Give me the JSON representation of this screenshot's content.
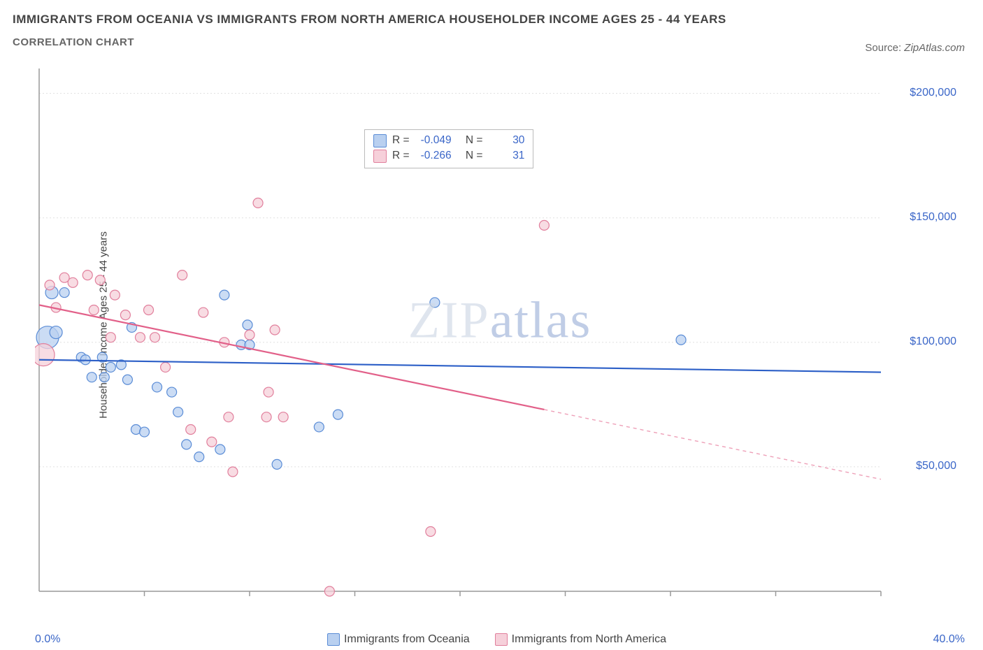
{
  "title_line1": "IMMIGRANTS FROM OCEANIA VS IMMIGRANTS FROM NORTH AMERICA HOUSEHOLDER INCOME AGES 25 - 44 YEARS",
  "title_line2": "CORRELATION CHART",
  "source_prefix": "Source: ",
  "source_name": "ZipAtlas.com",
  "ylabel": "Householder Income Ages 25 - 44 years",
  "watermark_a": "ZIP",
  "watermark_b": "atlas",
  "chart": {
    "type": "scatter",
    "xlim": [
      0,
      40.0
    ],
    "ylim": [
      0,
      210000
    ],
    "x0_label": "0.0%",
    "xmax_label": "40.0%",
    "y_ticks": [
      50000,
      100000,
      150000,
      200000
    ],
    "y_tick_labels": [
      "$50,000",
      "$100,000",
      "$150,000",
      "$200,000"
    ],
    "background_color": "#ffffff",
    "grid_color": "#e0e0e0",
    "axis_color": "#999999",
    "x_tick_positions": [
      5,
      10,
      15,
      20,
      25,
      30,
      35,
      40
    ]
  },
  "legend_top": {
    "s1_text_R": "R =",
    "s1_val_R": "-0.049",
    "s1_text_N": "N =",
    "s1_val_N": "30",
    "s2_val_R": "-0.266",
    "s2_val_N": "31"
  },
  "series": [
    {
      "name": "Immigrants from Oceania",
      "fill": "#b9d0f0",
      "stroke": "#5a8cd6",
      "trend_color": "#2c5fc7",
      "trend": {
        "x1": 0,
        "y1": 93000,
        "x2": 40,
        "y2": 88000,
        "solid_to_x": 40
      },
      "points": [
        {
          "x": 0.4,
          "y": 102000,
          "r": 16
        },
        {
          "x": 0.6,
          "y": 120000,
          "r": 9
        },
        {
          "x": 0.8,
          "y": 104000,
          "r": 9
        },
        {
          "x": 1.2,
          "y": 120000,
          "r": 7
        },
        {
          "x": 2.0,
          "y": 94000,
          "r": 7
        },
        {
          "x": 2.2,
          "y": 93000,
          "r": 7
        },
        {
          "x": 2.5,
          "y": 86000,
          "r": 7
        },
        {
          "x": 3.0,
          "y": 94000,
          "r": 7
        },
        {
          "x": 3.4,
          "y": 90000,
          "r": 7
        },
        {
          "x": 3.1,
          "y": 86000,
          "r": 7
        },
        {
          "x": 3.9,
          "y": 91000,
          "r": 7
        },
        {
          "x": 4.2,
          "y": 85000,
          "r": 7
        },
        {
          "x": 4.4,
          "y": 106000,
          "r": 7
        },
        {
          "x": 4.6,
          "y": 65000,
          "r": 7
        },
        {
          "x": 5.0,
          "y": 64000,
          "r": 7
        },
        {
          "x": 5.6,
          "y": 82000,
          "r": 7
        },
        {
          "x": 6.3,
          "y": 80000,
          "r": 7
        },
        {
          "x": 6.6,
          "y": 72000,
          "r": 7
        },
        {
          "x": 7.0,
          "y": 59000,
          "r": 7
        },
        {
          "x": 7.6,
          "y": 54000,
          "r": 7
        },
        {
          "x": 8.6,
          "y": 57000,
          "r": 7
        },
        {
          "x": 8.8,
          "y": 119000,
          "r": 7
        },
        {
          "x": 9.6,
          "y": 99000,
          "r": 7
        },
        {
          "x": 9.9,
          "y": 107000,
          "r": 7
        },
        {
          "x": 10.0,
          "y": 99000,
          "r": 7
        },
        {
          "x": 11.3,
          "y": 51000,
          "r": 7
        },
        {
          "x": 13.3,
          "y": 66000,
          "r": 7
        },
        {
          "x": 14.2,
          "y": 71000,
          "r": 7
        },
        {
          "x": 18.8,
          "y": 116000,
          "r": 7
        },
        {
          "x": 30.5,
          "y": 101000,
          "r": 7
        }
      ]
    },
    {
      "name": "Immigrants from North America",
      "fill": "#f6d0da",
      "stroke": "#e17f9c",
      "trend_color": "#e26089",
      "trend": {
        "x1": 0,
        "y1": 115000,
        "x2": 40,
        "y2": 45000,
        "solid_to_x": 24
      },
      "points": [
        {
          "x": 0.2,
          "y": 95000,
          "r": 16
        },
        {
          "x": 0.5,
          "y": 123000,
          "r": 7
        },
        {
          "x": 0.8,
          "y": 114000,
          "r": 7
        },
        {
          "x": 1.2,
          "y": 126000,
          "r": 7
        },
        {
          "x": 1.6,
          "y": 124000,
          "r": 7
        },
        {
          "x": 2.3,
          "y": 127000,
          "r": 7
        },
        {
          "x": 2.6,
          "y": 113000,
          "r": 7
        },
        {
          "x": 2.9,
          "y": 125000,
          "r": 7
        },
        {
          "x": 3.4,
          "y": 102000,
          "r": 7
        },
        {
          "x": 3.6,
          "y": 119000,
          "r": 7
        },
        {
          "x": 4.1,
          "y": 111000,
          "r": 7
        },
        {
          "x": 4.8,
          "y": 102000,
          "r": 7
        },
        {
          "x": 5.2,
          "y": 113000,
          "r": 7
        },
        {
          "x": 5.5,
          "y": 102000,
          "r": 7
        },
        {
          "x": 6.0,
          "y": 90000,
          "r": 7
        },
        {
          "x": 6.8,
          "y": 127000,
          "r": 7
        },
        {
          "x": 7.2,
          "y": 65000,
          "r": 7
        },
        {
          "x": 7.8,
          "y": 112000,
          "r": 7
        },
        {
          "x": 8.2,
          "y": 60000,
          "r": 7
        },
        {
          "x": 8.8,
          "y": 100000,
          "r": 7
        },
        {
          "x": 9.2,
          "y": 48000,
          "r": 7
        },
        {
          "x": 9.0,
          "y": 70000,
          "r": 7
        },
        {
          "x": 10.0,
          "y": 103000,
          "r": 7
        },
        {
          "x": 10.4,
          "y": 156000,
          "r": 7
        },
        {
          "x": 10.8,
          "y": 70000,
          "r": 7
        },
        {
          "x": 10.9,
          "y": 80000,
          "r": 7
        },
        {
          "x": 11.2,
          "y": 105000,
          "r": 7
        },
        {
          "x": 11.6,
          "y": 70000,
          "r": 7
        },
        {
          "x": 13.8,
          "y": 0,
          "r": 7
        },
        {
          "x": 18.6,
          "y": 24000,
          "r": 7
        },
        {
          "x": 24.0,
          "y": 147000,
          "r": 7
        }
      ]
    }
  ],
  "bottom_legend": {
    "s1": "Immigrants from Oceania",
    "s2": "Immigrants from North America"
  }
}
